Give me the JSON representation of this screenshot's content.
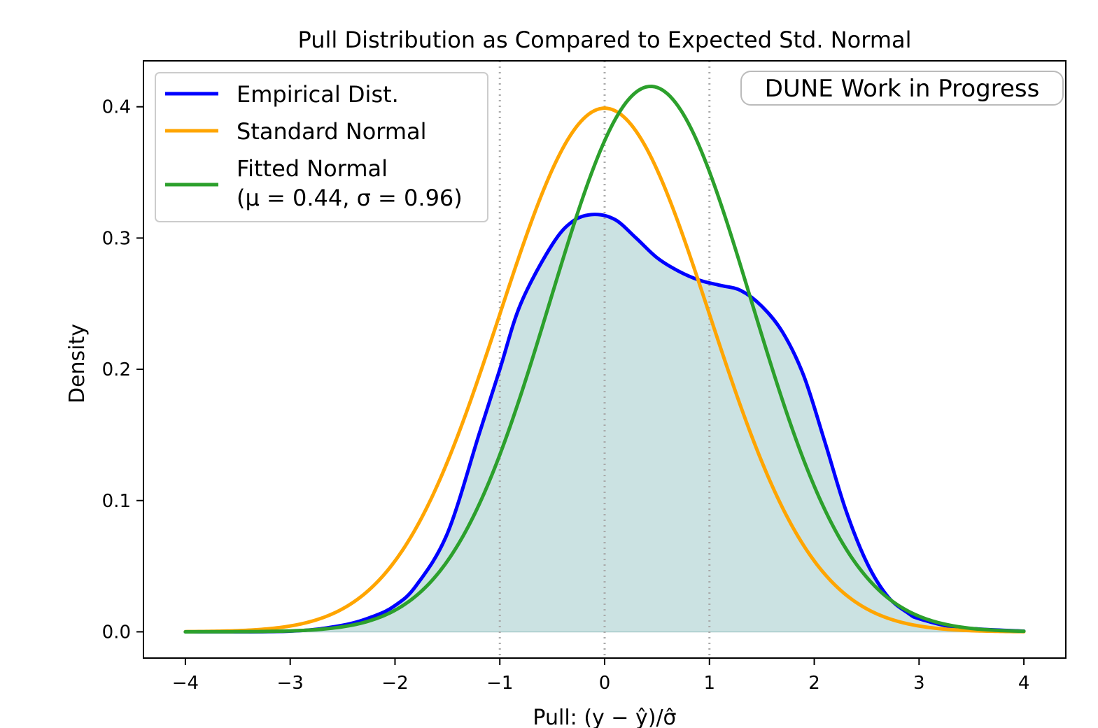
{
  "chart_data": {
    "type": "line",
    "title": "Pull Distribution as Compared to Expected Std. Normal",
    "xlabel": "Pull: (y − ŷ)/σ̂",
    "ylabel": "Density",
    "xlim": [
      -4.4,
      4.4
    ],
    "ylim": [
      -0.02,
      0.435
    ],
    "xticks": [
      -4,
      -3,
      -2,
      -1,
      0,
      1,
      2,
      3,
      4
    ],
    "xtick_labels": [
      "−4",
      "−3",
      "−2",
      "−1",
      "0",
      "1",
      "2",
      "3",
      "4"
    ],
    "yticks": [
      0.0,
      0.1,
      0.2,
      0.3,
      0.4
    ],
    "ytick_labels": [
      "0.0",
      "0.1",
      "0.2",
      "0.3",
      "0.4"
    ],
    "vlines": [
      -1,
      0,
      1
    ],
    "grid": false,
    "legend_position": "top-left",
    "annotation": "DUNE Work in Progress",
    "series": [
      {
        "name": "Empirical Dist.",
        "color": "#0000ff",
        "filled": true,
        "fill_color": "#cbe2e2",
        "x": [
          -4.0,
          -3.0,
          -2.5,
          -2.2,
          -2.0,
          -1.8,
          -1.5,
          -1.2,
          -1.0,
          -0.8,
          -0.5,
          -0.3,
          -0.1,
          0.1,
          0.3,
          0.5,
          0.7,
          0.9,
          1.1,
          1.3,
          1.5,
          1.7,
          1.9,
          2.1,
          2.3,
          2.5,
          2.7,
          2.9,
          3.0,
          3.3,
          3.6,
          4.0
        ],
        "y": [
          0.0,
          0.0005,
          0.005,
          0.012,
          0.02,
          0.035,
          0.075,
          0.15,
          0.2,
          0.25,
          0.295,
          0.313,
          0.318,
          0.314,
          0.3,
          0.285,
          0.275,
          0.268,
          0.264,
          0.26,
          0.248,
          0.228,
          0.195,
          0.145,
          0.093,
          0.053,
          0.027,
          0.014,
          0.01,
          0.004,
          0.002,
          0.0005
        ]
      },
      {
        "name": "Standard Normal",
        "color": "#ffa500",
        "mu": 0.0,
        "sigma": 1.0
      },
      {
        "name": "Fitted Normal",
        "name_line2": "(μ = 0.44, σ = 0.96)",
        "color": "#2ca02c",
        "mu": 0.44,
        "sigma": 0.96
      }
    ]
  }
}
